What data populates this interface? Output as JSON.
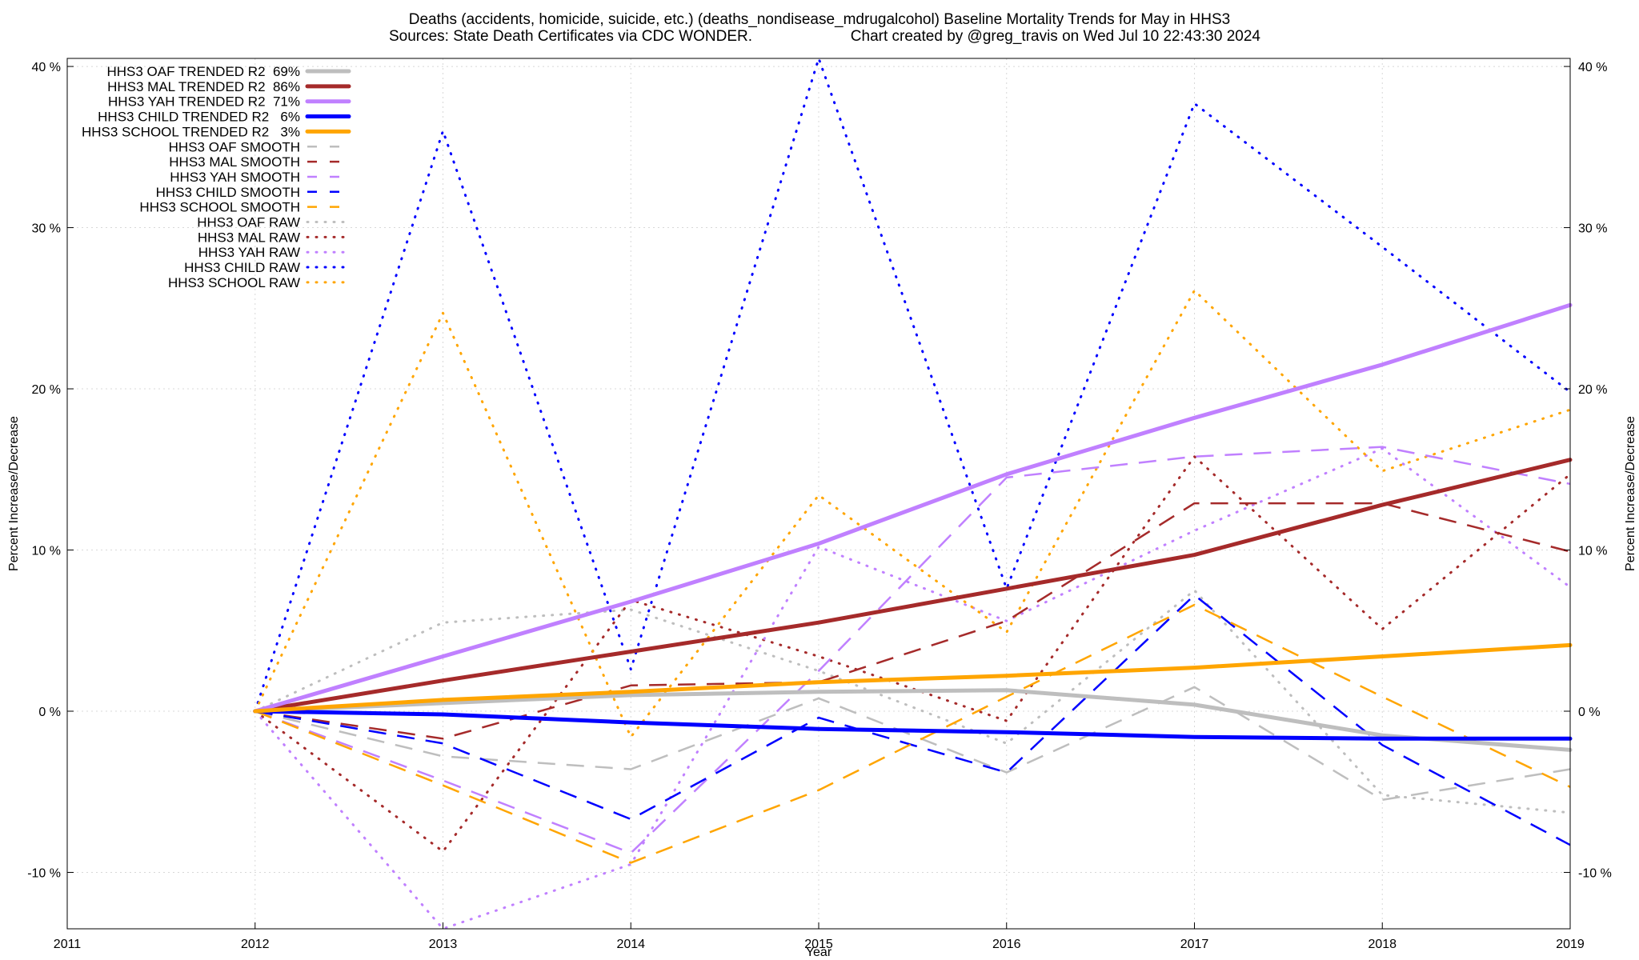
{
  "title": {
    "line1": "Deaths (accidents, homicide, suicide, etc.) (deaths_nondisease_mdrugalcohol)  Baseline Mortality Trends for May in HHS3",
    "line2_left": "Sources: State Death Certificates via CDC WONDER.",
    "line2_right": "Chart created by @greg_travis on Wed Jul 10 22:43:30 2024"
  },
  "chart_data": {
    "type": "line",
    "title": "Deaths (accidents, homicide, suicide, etc.) (deaths_nondisease_mdrugalcohol)  Baseline Mortality Trends for May in HHS3",
    "xlabel": "Year",
    "ylabel": "Percent Increase/Decrease",
    "y2label": "Percent Increase/Decrease",
    "xlim": [
      2011,
      2019
    ],
    "ylim": [
      -13.5,
      40.5
    ],
    "x_ticks": [
      "2011",
      "2012",
      "2013",
      "2014",
      "2015",
      "2016",
      "2017",
      "2018",
      "2019"
    ],
    "y_ticks": [
      {
        "value": 40,
        "label": "40 %"
      },
      {
        "value": 30,
        "label": "30 %"
      },
      {
        "value": 20,
        "label": "20 %"
      },
      {
        "value": 10,
        "label": "10 %"
      },
      {
        "value": 0,
        "label": "0 %"
      },
      {
        "value": -10,
        "label": "-10 %"
      }
    ],
    "grid": true,
    "legend_position": "top-left",
    "x": [
      2012,
      2013,
      2014,
      2015,
      2016,
      2017,
      2018,
      2019
    ],
    "series": [
      {
        "name": "HHS3 OAF TRENDED R2  69%",
        "style": "solid",
        "color": "#bebebe",
        "values": [
          0,
          0.5,
          1.0,
          1.2,
          1.3,
          0.4,
          -1.5,
          -2.4
        ]
      },
      {
        "name": "HHS3 MAL TRENDED R2  86%",
        "style": "solid",
        "color": "#a52a2a",
        "values": [
          0,
          1.9,
          3.7,
          5.5,
          7.6,
          9.7,
          12.8,
          15.6
        ]
      },
      {
        "name": "HHS3 YAH TRENDED R2  71%",
        "style": "solid",
        "color": "#c080ff",
        "values": [
          0,
          3.4,
          6.8,
          10.4,
          14.7,
          18.2,
          21.5,
          25.2
        ]
      },
      {
        "name": "HHS3 CHILD TRENDED R2   6%",
        "style": "solid",
        "color": "#0000ff",
        "values": [
          0,
          -0.2,
          -0.7,
          -1.1,
          -1.3,
          -1.6,
          -1.7,
          -1.7
        ]
      },
      {
        "name": "HHS3 SCHOOL TRENDED R2   3%",
        "style": "solid",
        "color": "#ffa500",
        "values": [
          0,
          0.7,
          1.2,
          1.8,
          2.2,
          2.7,
          3.4,
          4.1
        ]
      },
      {
        "name": "HHS3 OAF SMOOTH",
        "style": "dashed",
        "color": "#bebebe",
        "values": [
          0,
          -2.8,
          -3.6,
          0.8,
          -3.8,
          1.5,
          -5.5,
          -3.6
        ]
      },
      {
        "name": "HHS3 MAL SMOOTH",
        "style": "dashed",
        "color": "#a52a2a",
        "values": [
          0,
          -1.7,
          1.6,
          1.8,
          5.6,
          12.9,
          12.9,
          9.9
        ]
      },
      {
        "name": "HHS3 YAH SMOOTH",
        "style": "dashed",
        "color": "#c080ff",
        "values": [
          0,
          -4.3,
          -8.8,
          2.5,
          14.5,
          15.8,
          16.4,
          14.1
        ]
      },
      {
        "name": "HHS3 CHILD SMOOTH",
        "style": "dashed",
        "color": "#0000ff",
        "values": [
          0,
          -2.0,
          -6.7,
          -0.4,
          -3.8,
          7.2,
          -2.1,
          -8.3
        ]
      },
      {
        "name": "HHS3 SCHOOL SMOOTH",
        "style": "dashed",
        "color": "#ffa500",
        "values": [
          0,
          -4.6,
          -9.4,
          -4.9,
          0.9,
          6.6,
          0.9,
          -4.7
        ]
      },
      {
        "name": "HHS3 OAF RAW",
        "style": "dotted",
        "color": "#bebebe",
        "values": [
          0,
          5.5,
          6.3,
          2.5,
          -2.0,
          7.5,
          -5.2,
          -6.3
        ]
      },
      {
        "name": "HHS3 MAL RAW",
        "style": "dotted",
        "color": "#a52a2a",
        "values": [
          0,
          -8.7,
          6.9,
          3.4,
          -0.6,
          15.8,
          5.1,
          14.7
        ]
      },
      {
        "name": "HHS3 YAH RAW",
        "style": "dotted",
        "color": "#c080ff",
        "values": [
          0,
          -13.5,
          -9.5,
          10.2,
          5.6,
          11.2,
          16.3,
          7.7
        ]
      },
      {
        "name": "HHS3 CHILD RAW",
        "style": "dotted",
        "color": "#0000ff",
        "values": [
          0,
          36.0,
          2.6,
          40.5,
          7.6,
          37.7,
          28.8,
          19.8
        ]
      },
      {
        "name": "HHS3 SCHOOL RAW",
        "style": "dotted",
        "color": "#ffa500",
        "values": [
          0,
          24.7,
          -1.6,
          13.4,
          4.9,
          26.1,
          14.9,
          18.7
        ]
      }
    ]
  }
}
